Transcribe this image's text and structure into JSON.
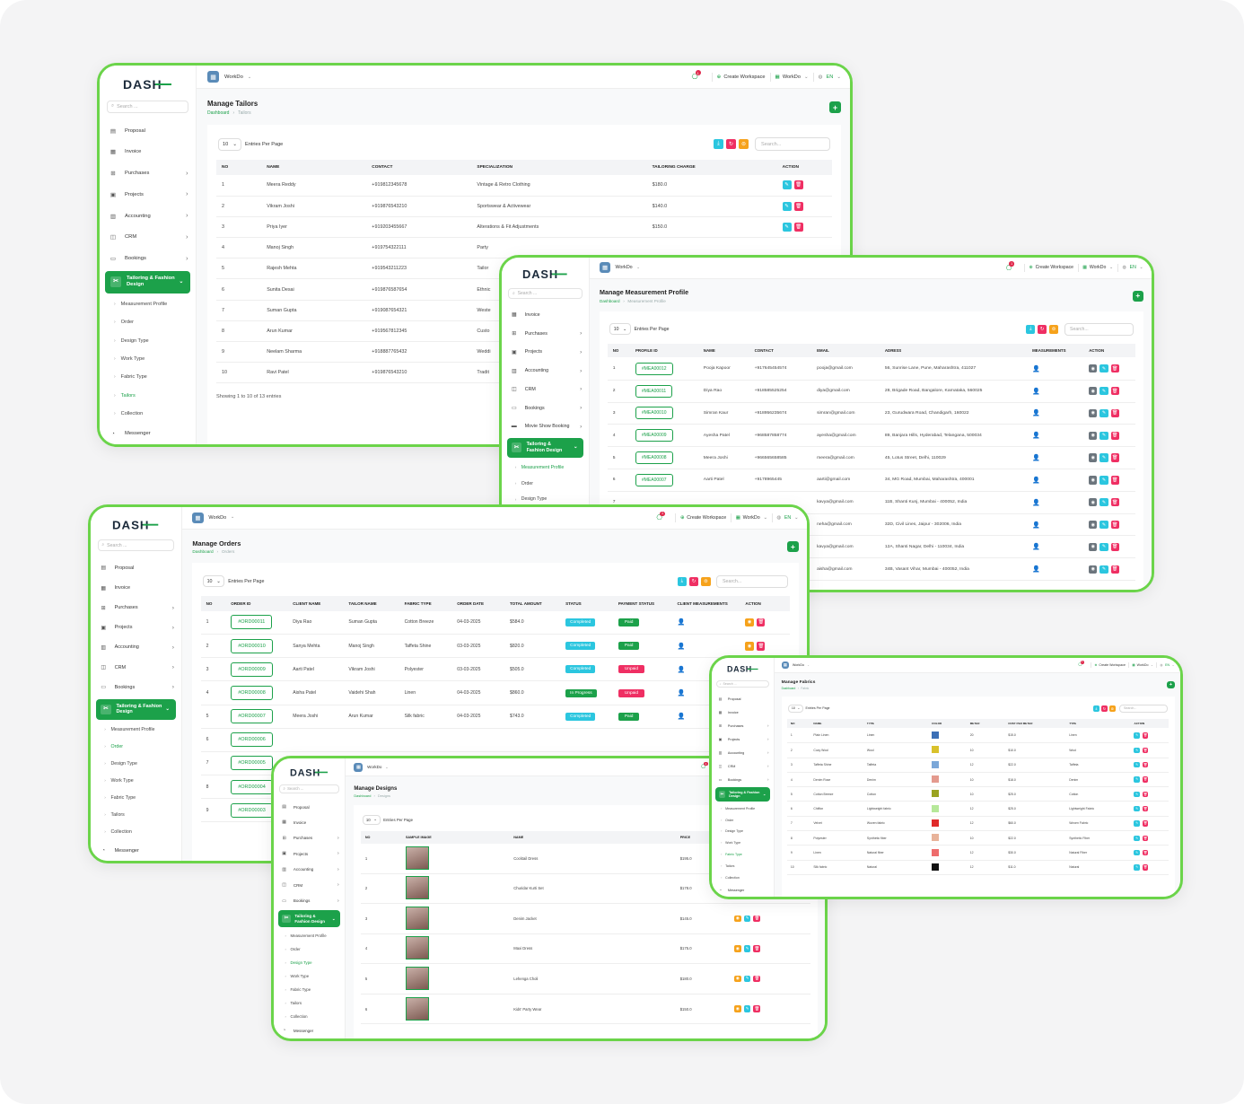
{
  "brand": {
    "logo_text": "DASH",
    "accent": "#1ca14a",
    "frame": "#6bd44a"
  },
  "topbar": {
    "workspace": "WorkDo",
    "notif_count": "1",
    "create_workspace": "Create Workspace",
    "workspace_menu": "WorkDo",
    "lang": "EN"
  },
  "sidebar": {
    "search_placeholder": "Search ...",
    "proposal": "Proposal",
    "invoice": "Invoice",
    "purchases": "Purchases",
    "projects": "Projects",
    "accounting": "Accounting",
    "crm": "CRM",
    "bookings": "Bookings",
    "movie_show": "Movie Show Booking",
    "tailoring": "Tailoring & Fashion Design",
    "messenger": "Messenger",
    "subs": {
      "measurement": "Measurement Profile",
      "order": "Order",
      "design_type": "Design Type",
      "work_type": "Work Type",
      "fabric_type": "Fabric Type",
      "tailors": "Tailors",
      "collection": "Collection"
    }
  },
  "common": {
    "dashboard": "Dashboard",
    "entries": "10",
    "entries_label": "Entries Per Page",
    "search_placeholder": "Search..."
  },
  "tailors": {
    "title": "Manage Tailors",
    "crumb": "Tailors",
    "headers": [
      "NO",
      "NAME",
      "CONTACT",
      "SPECIALIZATION",
      "TAILORING CHARGE",
      "ACTION"
    ],
    "rows": [
      [
        "1",
        "Meera Reddy",
        "+919812345678",
        "Vintage & Retro Clothing",
        "$180.0"
      ],
      [
        "2",
        "Vikram Joshi",
        "+919876543210",
        "Sportswear & Activewear",
        "$140.0"
      ],
      [
        "3",
        "Priya Iyer",
        "+919203455667",
        "Alterations & Fit Adjustments",
        "$150.0"
      ],
      [
        "4",
        "Manoj Singh",
        "+919754322111",
        "Party",
        ""
      ],
      [
        "5",
        "Rajesh Mehta",
        "+919543211223",
        "Tailor",
        ""
      ],
      [
        "6",
        "Sunita Desai",
        "+919876587654",
        "Ethnic",
        ""
      ],
      [
        "7",
        "Suman Gupta",
        "+919087654321",
        "Weste",
        ""
      ],
      [
        "8",
        "Arun Kumar",
        "+919567812345",
        "Custo",
        ""
      ],
      [
        "9",
        "Neelam Sharma",
        "+918887765432",
        "Weddi",
        ""
      ],
      [
        "10",
        "Ravi Patel",
        "+919876543210",
        "Tradit",
        ""
      ]
    ],
    "footer": "Showing 1 to 10 of 13 entries"
  },
  "measurement": {
    "title": "Manage Measurement Profile",
    "crumb": "Measurement Profile",
    "headers": [
      "NO",
      "PROFILE ID",
      "NAME",
      "CONTACT",
      "EMAIL",
      "ADRESS",
      "MEASUREMENTS",
      "ACTION"
    ],
    "rows": [
      [
        "1",
        "#MEA00012",
        "Pooja Kapoor",
        "+917645454574",
        "pooja@gmail.com",
        "56, Sunrise Lane, Pune, Maharashtra, 411027"
      ],
      [
        "2",
        "#MEA00011",
        "Diya Rao",
        "+918585525254",
        "diya@gmail.com",
        "28, Brigade Road, Bangalore, Karnataka, 560025"
      ],
      [
        "3",
        "#MEA00010",
        "Simran Kaur",
        "+918956235674",
        "simran@gmail.com",
        "23, Gurudwara Road, Chandigarh, 160022"
      ],
      [
        "4",
        "#MEA00009",
        "Ayesha Patel",
        "+968587858774",
        "ayesha@gmail.com",
        "89, Banjara Hills, Hyderabad, Telangana, 500034"
      ],
      [
        "5",
        "#MEA00008",
        "Meera Joshi",
        "+966565658585",
        "meera@gmail.com",
        "45, Lotus Street, Delhi, 110029"
      ],
      [
        "6",
        "#MEA00007",
        "Aarti Patel",
        "+9178965445",
        "aarti@gmail.com",
        "34, MG Road, Mumbai, Maharashtra, 400001"
      ],
      [
        "7",
        "",
        "",
        "",
        "kavya@gmail.com",
        "11B, Shanti Kunj, Mumbai - 400052, India"
      ],
      [
        "8",
        "",
        "",
        "",
        "neha@gmail.com",
        "32D, Civil Lines, Jaipur - 302006, India"
      ],
      [
        "9",
        "",
        "",
        "",
        "kavya@gmail.com",
        "12A, Shanti Nagar, Delhi - 110034, India"
      ],
      [
        "10",
        "",
        "",
        "",
        "aisha@gmail.com",
        "34B, Vasant Vihar, Mumbai - 400052, India"
      ]
    ]
  },
  "orders": {
    "title": "Manage Orders",
    "crumb": "Orders",
    "headers": [
      "NO",
      "ORDER ID",
      "CLIENT NAME",
      "TAILOR NAME",
      "FABRIC TYPE",
      "ORDER DATE",
      "TOTAL AMOUNT",
      "STATUS",
      "PAYMENT STATUS",
      "CLIENT MEASUREMENTS",
      "ACTION"
    ],
    "rows": [
      [
        "1",
        "#ORD00011",
        "Diya Rao",
        "Suman Gupta",
        "Cotton Breeze",
        "04-03-2025",
        "$584.0",
        "Completed",
        "Paid"
      ],
      [
        "2",
        "#ORD00010",
        "Sanya Mehta",
        "Manoj Singh",
        "Taffeta Shine",
        "03-03-2025",
        "$820.0",
        "Completed",
        "Paid"
      ],
      [
        "3",
        "#ORD00009",
        "Aarti Patel",
        "Vikram Joshi",
        "Polyester",
        "03-03-2025",
        "$505.0",
        "Completed",
        "Unpaid"
      ],
      [
        "4",
        "#ORD00008",
        "Aisha Patel",
        "Vaidehi Shah",
        "Linen",
        "04-03-2025",
        "$860.0",
        "In Progress",
        "Unpaid"
      ],
      [
        "5",
        "#ORD00007",
        "Meera Joshi",
        "Arun Kumar",
        "Silk fabric",
        "04-03-2025",
        "$743.0",
        "Completed",
        "Paid"
      ],
      [
        "6",
        "#ORD00006",
        "",
        "",
        "",
        "",
        "",
        "",
        ""
      ],
      [
        "7",
        "#ORD00005",
        "",
        "",
        "",
        "",
        "",
        "",
        ""
      ],
      [
        "8",
        "#ORD00004",
        "",
        "",
        "",
        "",
        "",
        "",
        ""
      ],
      [
        "9",
        "#ORD00003",
        "",
        "",
        "",
        "",
        "",
        "",
        ""
      ]
    ]
  },
  "designs": {
    "title": "Manage Designs",
    "crumb": "Designs",
    "headers": [
      "NO",
      "SAMPLE IMAGE",
      "NAME",
      "PRICE",
      ""
    ],
    "rows": [
      [
        "1",
        "Cocktail Dress",
        "$195.0"
      ],
      [
        "2",
        "Churidar Kurti Set",
        "$178.0"
      ],
      [
        "3",
        "Denim Jacket",
        "$145.0"
      ],
      [
        "4",
        "Maxi Dress",
        "$175.0"
      ],
      [
        "5",
        "Lehenga Choli",
        "$180.0"
      ],
      [
        "6",
        "Kids' Party Wear",
        "$150.0"
      ]
    ]
  },
  "fabrics": {
    "title": "Manage Fabrics",
    "crumb": "Fabric",
    "headers": [
      "NO",
      "NAME",
      "TYPE",
      "COLOR",
      "METER",
      "COST PER METER",
      "TYPE",
      "ACTION"
    ],
    "rows": [
      [
        "1",
        "Plain Linen",
        "Linen",
        "#3b6fb6",
        "20",
        "$15.0",
        "Linen"
      ],
      [
        "2",
        "Cozy Wool",
        "Wool",
        "#d9c12b",
        "10",
        "$10.0",
        "Wool"
      ],
      [
        "3",
        "Taffeta Shine",
        "Taffeta",
        "#7ba7d8",
        "12",
        "$22.0",
        "Taffeta"
      ],
      [
        "4",
        "Denim Rose",
        "Denim",
        "#e49a8e",
        "10",
        "$18.0",
        "Denim"
      ],
      [
        "5",
        "Cotton Breeze",
        "Cotton",
        "#9aa321",
        "10",
        "$25.0",
        "Cotton"
      ],
      [
        "6",
        "Chiffon",
        "Lightweight fabric",
        "#b6e89a",
        "12",
        "$25.0",
        "Lightweight Fabric"
      ],
      [
        "7",
        "Velvet",
        "Woven fabric",
        "#e02a2a",
        "12",
        "$60.0",
        "Woven Fabric"
      ],
      [
        "8",
        "Polyester",
        "Synthetic fiber",
        "#e8b39a",
        "10",
        "$22.0",
        "Synthetic Fiber"
      ],
      [
        "9",
        "Linen",
        "Natural fiber",
        "#ee6c6c",
        "12",
        "$30.0",
        "Natural Fiber"
      ],
      [
        "10",
        "Silk fabric",
        "Natural",
        "#111111",
        "12",
        "$11.0",
        "Natural"
      ]
    ]
  }
}
